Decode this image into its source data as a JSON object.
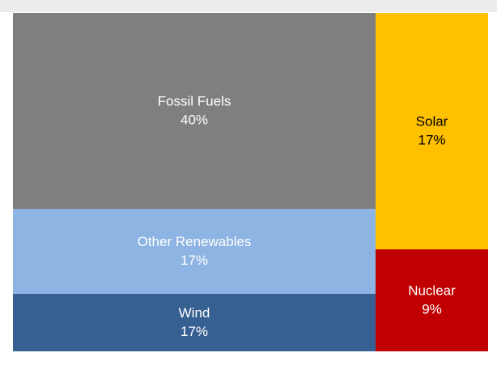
{
  "chart_data": {
    "type": "treemap",
    "categories": [
      "Fossil Fuels",
      "Other Renewables",
      "Wind",
      "Solar",
      "Nuclear"
    ],
    "values": [
      40,
      17,
      17,
      17,
      9
    ],
    "value_labels": [
      "40%",
      "17%",
      "17%",
      "17%",
      "9%"
    ],
    "colors": [
      "#7f7f7f",
      "#8db4e2",
      "#376092",
      "#ffc000",
      "#c00000"
    ],
    "label_colors": [
      "#ffffff",
      "#ffffff",
      "#ffffff",
      "#000000",
      "#ffffff"
    ]
  }
}
